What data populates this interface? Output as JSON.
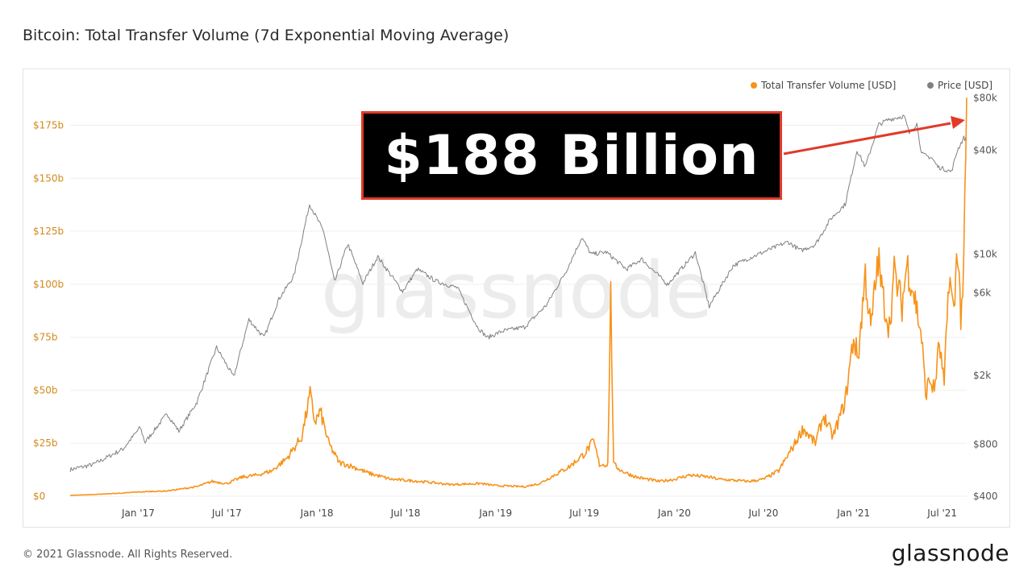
{
  "title": "Bitcoin: Total Transfer Volume (7d Exponential Moving Average)",
  "footer": "© 2021 Glassnode. All Rights Reserved.",
  "brand": "glassnode",
  "watermark": "glassnode",
  "callout": {
    "text": "$188 Billion",
    "border_color": "#e03a2a",
    "arrow_color": "#e03a2a"
  },
  "colors": {
    "volume": "#f7931a",
    "price": "#808080",
    "left_axis_text": "#d38a1c",
    "right_axis_text": "#555555"
  },
  "chart_data": {
    "type": "line",
    "title": "Bitcoin: Total Transfer Volume (7d Exponential Moving Average)",
    "legend_position": "top-right",
    "grid": true,
    "x_tick_labels": [
      "Jan '17",
      "Jul '17",
      "Jan '18",
      "Jul '18",
      "Jan '19",
      "Jul '19",
      "Jan '20",
      "Jul '20",
      "Jan '21",
      "Jul '21"
    ],
    "x_ticks": [
      "2017-01-01",
      "2017-07-01",
      "2018-01-01",
      "2018-07-01",
      "2019-01-01",
      "2019-07-01",
      "2020-01-01",
      "2020-07-01",
      "2021-01-01",
      "2021-07-01"
    ],
    "x_range": [
      "2016-08-15",
      "2021-08-20"
    ],
    "y_left": {
      "label": "Total Transfer Volume [USD]",
      "scale": "linear",
      "range": [
        0,
        190000000000
      ],
      "ticks": [
        0,
        25000000000,
        50000000000,
        75000000000,
        100000000000,
        125000000000,
        150000000000,
        175000000000
      ],
      "tick_labels": [
        "$0",
        "$25b",
        "$50b",
        "$75b",
        "$100b",
        "$125b",
        "$150b",
        "$175b"
      ]
    },
    "y_right": {
      "label": "Price [USD]",
      "scale": "log",
      "range": [
        400,
        85000
      ],
      "ticks": [
        400,
        800,
        2000,
        6000,
        10000,
        40000,
        80000
      ],
      "tick_labels": [
        "$400",
        "$800",
        "$2k",
        "$6k",
        "$10k",
        "$40k",
        "$80k"
      ]
    },
    "series": [
      {
        "name": "Total Transfer Volume [USD]",
        "axis": "left",
        "color": "#f7931a",
        "points": [
          [
            "2016-08-15",
            0.4
          ],
          [
            "2016-10-01",
            0.8
          ],
          [
            "2016-12-01",
            1.5
          ],
          [
            "2017-01-01",
            2.0
          ],
          [
            "2017-03-01",
            2.5
          ],
          [
            "2017-05-01",
            4.5
          ],
          [
            "2017-06-01",
            7
          ],
          [
            "2017-07-01",
            6
          ],
          [
            "2017-08-01",
            9
          ],
          [
            "2017-09-01",
            10
          ],
          [
            "2017-10-01",
            12
          ],
          [
            "2017-11-01",
            18
          ],
          [
            "2017-12-01",
            28
          ],
          [
            "2017-12-18",
            48
          ],
          [
            "2017-12-28",
            35
          ],
          [
            "2018-01-08",
            40
          ],
          [
            "2018-01-25",
            25
          ],
          [
            "2018-02-15",
            16
          ],
          [
            "2018-03-15",
            14
          ],
          [
            "2018-04-15",
            11
          ],
          [
            "2018-06-01",
            8
          ],
          [
            "2018-08-01",
            7
          ],
          [
            "2018-10-01",
            5.5
          ],
          [
            "2018-12-01",
            6
          ],
          [
            "2019-01-01",
            5
          ],
          [
            "2019-03-01",
            4.5
          ],
          [
            "2019-04-01",
            6
          ],
          [
            "2019-05-01",
            10
          ],
          [
            "2019-06-01",
            14
          ],
          [
            "2019-07-01",
            20
          ],
          [
            "2019-07-20",
            26
          ],
          [
            "2019-08-01",
            15
          ],
          [
            "2019-08-18",
            15
          ],
          [
            "2019-08-24",
            95
          ],
          [
            "2019-08-30",
            15
          ],
          [
            "2019-09-15",
            12
          ],
          [
            "2019-10-15",
            9
          ],
          [
            "2019-12-01",
            7
          ],
          [
            "2020-01-01",
            8
          ],
          [
            "2020-02-01",
            10
          ],
          [
            "2020-03-12",
            9
          ],
          [
            "2020-04-01",
            8
          ],
          [
            "2020-06-01",
            7
          ],
          [
            "2020-07-01",
            8
          ],
          [
            "2020-08-01",
            12
          ],
          [
            "2020-09-01",
            24
          ],
          [
            "2020-09-20",
            32
          ],
          [
            "2020-10-15",
            25
          ],
          [
            "2020-11-01",
            38
          ],
          [
            "2020-11-20",
            28
          ],
          [
            "2020-12-15",
            45
          ],
          [
            "2021-01-01",
            75
          ],
          [
            "2021-01-10",
            65
          ],
          [
            "2021-01-25",
            105
          ],
          [
            "2021-02-05",
            78
          ],
          [
            "2021-02-20",
            112
          ],
          [
            "2021-03-01",
            95
          ],
          [
            "2021-03-15",
            80
          ],
          [
            "2021-03-25",
            105
          ],
          [
            "2021-04-10",
            90
          ],
          [
            "2021-04-20",
            110
          ],
          [
            "2021-05-05",
            95
          ],
          [
            "2021-05-20",
            75
          ],
          [
            "2021-05-28",
            48
          ],
          [
            "2021-06-05",
            55
          ],
          [
            "2021-06-15",
            50
          ],
          [
            "2021-06-25",
            72
          ],
          [
            "2021-07-05",
            52
          ],
          [
            "2021-07-15",
            105
          ],
          [
            "2021-07-25",
            85
          ],
          [
            "2021-08-01",
            120
          ],
          [
            "2021-08-08",
            85
          ],
          [
            "2021-08-14",
            105
          ],
          [
            "2021-08-20",
            188
          ]
        ],
        "unit": "billion USD"
      },
      {
        "name": "Price [USD]",
        "axis": "right",
        "color": "#808080",
        "points": [
          [
            "2016-08-15",
            570
          ],
          [
            "2016-10-01",
            610
          ],
          [
            "2016-12-01",
            750
          ],
          [
            "2017-01-05",
            1000
          ],
          [
            "2017-01-15",
            820
          ],
          [
            "2017-03-01",
            1200
          ],
          [
            "2017-03-25",
            950
          ],
          [
            "2017-05-01",
            1400
          ],
          [
            "2017-06-10",
            2900
          ],
          [
            "2017-07-15",
            1950
          ],
          [
            "2017-08-15",
            4200
          ],
          [
            "2017-09-15",
            3300
          ],
          [
            "2017-10-15",
            5500
          ],
          [
            "2017-11-15",
            7500
          ],
          [
            "2017-12-17",
            19500
          ],
          [
            "2018-01-15",
            13500
          ],
          [
            "2018-02-06",
            6900
          ],
          [
            "2018-03-05",
            11500
          ],
          [
            "2018-04-05",
            6800
          ],
          [
            "2018-05-05",
            9700
          ],
          [
            "2018-06-25",
            6100
          ],
          [
            "2018-07-25",
            8200
          ],
          [
            "2018-09-01",
            7000
          ],
          [
            "2018-10-15",
            6400
          ],
          [
            "2018-11-25",
            3800
          ],
          [
            "2018-12-15",
            3300
          ],
          [
            "2019-01-15",
            3600
          ],
          [
            "2019-03-01",
            3800
          ],
          [
            "2019-04-15",
            5100
          ],
          [
            "2019-05-25",
            8000
          ],
          [
            "2019-06-26",
            12500
          ],
          [
            "2019-07-15",
            10000
          ],
          [
            "2019-08-15",
            10300
          ],
          [
            "2019-09-25",
            8200
          ],
          [
            "2019-10-26",
            9400
          ],
          [
            "2019-12-18",
            6700
          ],
          [
            "2020-02-13",
            10200
          ],
          [
            "2020-03-12",
            5000
          ],
          [
            "2020-04-30",
            8600
          ],
          [
            "2020-06-01",
            9500
          ],
          [
            "2020-07-25",
            11000
          ],
          [
            "2020-08-20",
            11800
          ],
          [
            "2020-09-15",
            10500
          ],
          [
            "2020-10-15",
            11400
          ],
          [
            "2020-11-15",
            16000
          ],
          [
            "2020-12-15",
            19500
          ],
          [
            "2021-01-08",
            40000
          ],
          [
            "2021-01-25",
            32000
          ],
          [
            "2021-02-21",
            56000
          ],
          [
            "2021-03-13",
            60000
          ],
          [
            "2021-04-14",
            63000
          ],
          [
            "2021-04-25",
            50000
          ],
          [
            "2021-05-10",
            57000
          ],
          [
            "2021-05-20",
            38000
          ],
          [
            "2021-06-10",
            36000
          ],
          [
            "2021-06-22",
            32000
          ],
          [
            "2021-07-20",
            30000
          ],
          [
            "2021-08-01",
            40000
          ],
          [
            "2021-08-14",
            47000
          ],
          [
            "2021-08-20",
            46000
          ]
        ]
      }
    ]
  }
}
